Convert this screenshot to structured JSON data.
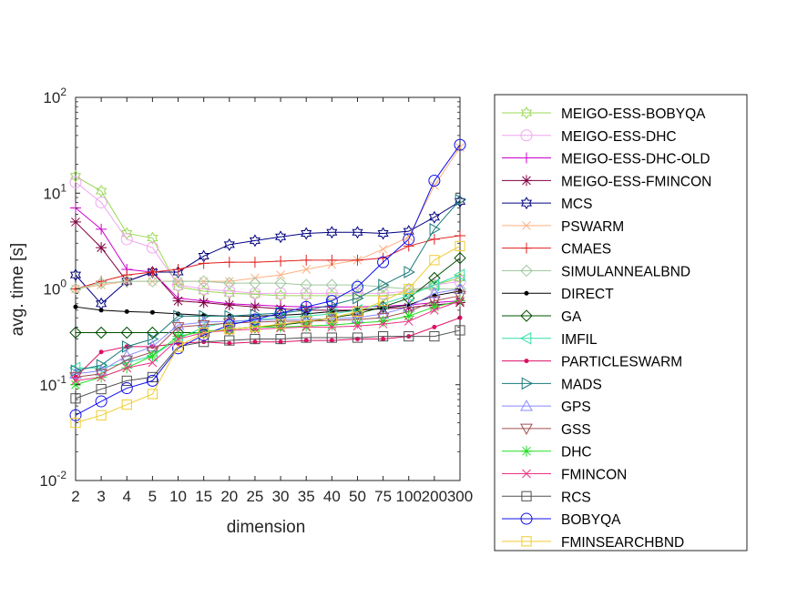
{
  "chart_data": {
    "type": "line",
    "xlabel": "dimension",
    "ylabel": "avg. time [s]",
    "yscale": "log",
    "ylim": [
      0.01,
      100
    ],
    "y_ticks": [
      {
        "value": 0.01,
        "base": "10",
        "exp": "-2"
      },
      {
        "value": 0.1,
        "base": "10",
        "exp": "-1"
      },
      {
        "value": 1,
        "base": "10",
        "exp": "0"
      },
      {
        "value": 10,
        "base": "10",
        "exp": "1"
      },
      {
        "value": 100,
        "base": "10",
        "exp": "2"
      }
    ],
    "categories": [
      "2",
      "3",
      "4",
      "5",
      "10",
      "15",
      "20",
      "25",
      "30",
      "35",
      "40",
      "50",
      "75",
      "100",
      "200",
      "300"
    ],
    "grid": false,
    "legend_position": "outside-right",
    "series": [
      {
        "name": "MEIGO-ESS-BOBYQA",
        "color": "#99d955",
        "marker": "hexagram",
        "values": [
          15,
          10.5,
          3.8,
          3.4,
          1.05,
          0.95,
          0.9,
          0.88,
          0.85,
          0.85,
          0.85,
          0.85,
          0.85,
          0.9,
          1.1,
          1.3
        ]
      },
      {
        "name": "MEIGO-ESS-DHC",
        "color": "#f0a6f0",
        "marker": "circle",
        "values": [
          13,
          8,
          3.3,
          2.7,
          1.1,
          1.0,
          0.95,
          0.9,
          0.9,
          0.9,
          0.9,
          0.9,
          0.9,
          0.95,
          1.1,
          1.2
        ]
      },
      {
        "name": "MEIGO-ESS-DHC-OLD",
        "color": "#cc00cc",
        "marker": "plus",
        "values": [
          7,
          4.2,
          1.6,
          1.5,
          0.8,
          0.75,
          0.7,
          0.68,
          0.66,
          0.65,
          0.65,
          0.65,
          0.66,
          0.68,
          0.72,
          0.75
        ]
      },
      {
        "name": "MEIGO-ESS-FMINCON",
        "color": "#800040",
        "marker": "asterisk",
        "values": [
          5,
          2.7,
          1.2,
          1.5,
          0.75,
          0.72,
          0.68,
          0.65,
          0.62,
          0.6,
          0.6,
          0.6,
          0.62,
          0.64,
          0.68,
          0.72
        ]
      },
      {
        "name": "MCS",
        "color": "#000080",
        "marker": "hexagram",
        "values": [
          1.4,
          0.7,
          1.2,
          1.5,
          1.5,
          2.2,
          2.9,
          3.2,
          3.5,
          3.8,
          3.9,
          3.9,
          3.8,
          4.0,
          5.6,
          8.2
        ]
      },
      {
        "name": "PSWARM",
        "color": "#ffb080",
        "marker": "x",
        "values": [
          1.0,
          1.1,
          1.2,
          1.2,
          1.2,
          1.2,
          1.2,
          1.3,
          1.4,
          1.6,
          1.8,
          2.0,
          2.6,
          3.5,
          12.0,
          30.0
        ]
      },
      {
        "name": "CMAES",
        "color": "#e02020",
        "marker": "plus",
        "values": [
          1.0,
          1.2,
          1.4,
          1.5,
          1.6,
          1.85,
          1.9,
          1.9,
          1.95,
          2.0,
          2.0,
          2.0,
          2.1,
          2.8,
          3.3,
          3.6
        ]
      },
      {
        "name": "SIMULANNEALBND",
        "color": "#a0c8a0",
        "marker": "diamond",
        "values": [
          1.0,
          1.15,
          1.2,
          1.2,
          1.2,
          1.2,
          1.15,
          1.15,
          1.15,
          1.1,
          1.1,
          1.1,
          1.05,
          1.0,
          1.0,
          1.0
        ]
      },
      {
        "name": "DIRECT",
        "color": "#000000",
        "marker": "dot",
        "values": [
          0.65,
          0.6,
          0.58,
          0.57,
          0.55,
          0.53,
          0.52,
          0.52,
          0.53,
          0.55,
          0.58,
          0.6,
          0.63,
          0.68,
          0.85,
          0.95
        ]
      },
      {
        "name": "GA",
        "color": "#005000",
        "marker": "diamond",
        "values": [
          0.35,
          0.35,
          0.35,
          0.35,
          0.35,
          0.35,
          0.38,
          0.4,
          0.42,
          0.45,
          0.5,
          0.55,
          0.65,
          0.8,
          1.3,
          2.1
        ]
      },
      {
        "name": "IMFIL",
        "color": "#33dda8",
        "marker": "triangle-left",
        "values": [
          0.15,
          0.15,
          0.17,
          0.2,
          0.3,
          0.4,
          0.45,
          0.48,
          0.5,
          0.52,
          0.55,
          0.6,
          0.7,
          0.85,
          1.1,
          1.4
        ]
      },
      {
        "name": "PARTICLESWARM",
        "color": "#dd1166",
        "marker": "dot",
        "values": [
          0.12,
          0.22,
          0.25,
          0.25,
          0.27,
          0.28,
          0.27,
          0.28,
          0.28,
          0.29,
          0.29,
          0.3,
          0.3,
          0.32,
          0.4,
          0.5
        ]
      },
      {
        "name": "MADS",
        "color": "#1a7a7a",
        "marker": "triangle-right",
        "values": [
          0.14,
          0.16,
          0.25,
          0.3,
          0.52,
          0.52,
          0.52,
          0.54,
          0.56,
          0.6,
          0.68,
          0.8,
          1.1,
          1.5,
          4.2,
          8.5
        ]
      },
      {
        "name": "GPS",
        "color": "#8888ff",
        "marker": "triangle-up",
        "values": [
          0.13,
          0.14,
          0.2,
          0.25,
          0.42,
          0.45,
          0.46,
          0.47,
          0.48,
          0.48,
          0.49,
          0.5,
          0.55,
          0.65,
          0.9,
          1.0
        ]
      },
      {
        "name": "GSS",
        "color": "#a05050",
        "marker": "triangle-down",
        "values": [
          0.12,
          0.13,
          0.18,
          0.22,
          0.4,
          0.42,
          0.44,
          0.45,
          0.46,
          0.46,
          0.47,
          0.48,
          0.5,
          0.58,
          0.75,
          0.85
        ]
      },
      {
        "name": "DHC",
        "color": "#22dd22",
        "marker": "asterisk",
        "values": [
          0.1,
          0.12,
          0.15,
          0.2,
          0.32,
          0.36,
          0.38,
          0.4,
          0.4,
          0.41,
          0.42,
          0.44,
          0.46,
          0.52,
          0.65,
          0.75
        ]
      },
      {
        "name": "FMINCON",
        "color": "#ee3388",
        "marker": "x",
        "values": [
          0.11,
          0.12,
          0.15,
          0.17,
          0.3,
          0.35,
          0.37,
          0.38,
          0.39,
          0.4,
          0.4,
          0.41,
          0.43,
          0.46,
          0.6,
          0.75
        ]
      },
      {
        "name": "RCS",
        "color": "#505050",
        "marker": "square",
        "values": [
          0.072,
          0.09,
          0.11,
          0.12,
          0.25,
          0.28,
          0.29,
          0.3,
          0.3,
          0.31,
          0.31,
          0.31,
          0.32,
          0.32,
          0.32,
          0.37
        ]
      },
      {
        "name": "BOBYQA",
        "color": "#1010ee",
        "marker": "circle",
        "values": [
          0.048,
          0.067,
          0.092,
          0.11,
          0.24,
          0.33,
          0.42,
          0.48,
          0.56,
          0.65,
          0.75,
          1.05,
          1.9,
          3.3,
          13.5,
          32.0
        ]
      },
      {
        "name": "FMINSEARCHBND",
        "color": "#f0cc33",
        "marker": "square",
        "values": [
          0.04,
          0.048,
          0.062,
          0.08,
          0.25,
          0.35,
          0.38,
          0.4,
          0.43,
          0.46,
          0.5,
          0.58,
          0.75,
          1.0,
          2.0,
          2.8
        ]
      }
    ]
  }
}
